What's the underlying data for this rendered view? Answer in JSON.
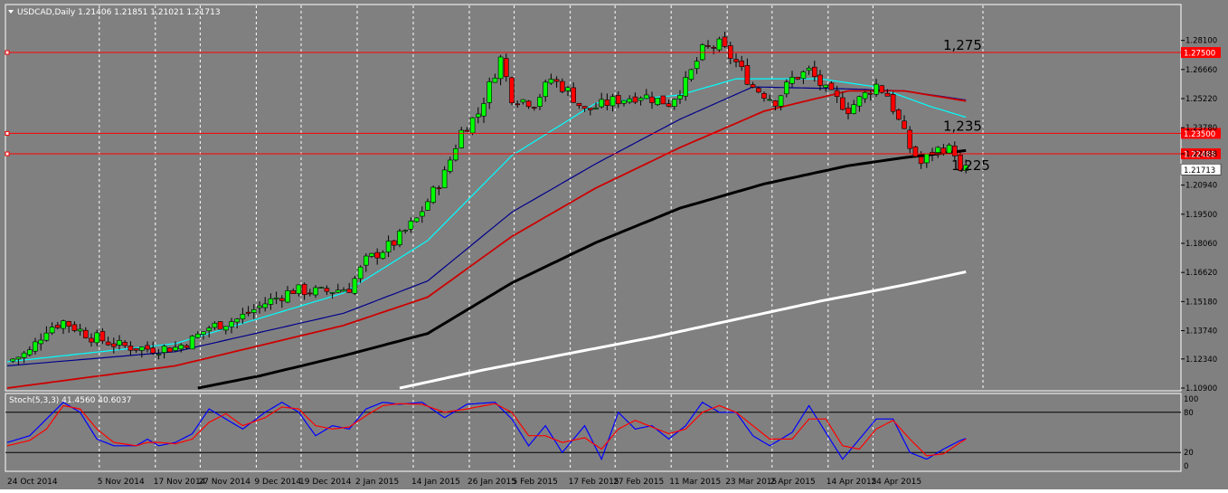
{
  "window": {
    "symbol_header": "USDCAD,Daily  1.21406 1.21851 1.21021 1.21713",
    "menu_icon": "dropdown-triangle-icon"
  },
  "colors": {
    "background": "#808080",
    "frame": "#ffffff",
    "grid": "#ffffff",
    "bull_candle": "#00ff00",
    "bear_candle": "#ff0000",
    "candle_wick": "#000000",
    "ma_fast": "#00ffff",
    "ma_mid": "#00008b",
    "ma_slow": "#cc0000",
    "ma_100": "#000000",
    "ma_200": "#ffffff",
    "hline": "#ff0000",
    "price_tag_red": "#ff0000",
    "price_tag_current": "#ffffff",
    "stoch_main": "#0000ff",
    "stoch_signal": "#ff0000"
  },
  "chart_data": [
    {
      "type": "candlestick",
      "title": "USDCAD,Daily",
      "header_values": {
        "open": 1.21406,
        "high": 1.21851,
        "low": 1.21021,
        "close": 1.21713
      },
      "ylim": [
        1.109,
        1.288
      ],
      "grid": "vertical dashed at date ticks",
      "y_ticks": [
        "1.28100",
        "1.26660",
        "1.25220",
        "1.23780",
        "1.22488",
        "1.20940",
        "1.19500",
        "1.18060",
        "1.16620",
        "1.15180",
        "1.13740",
        "1.12340",
        "1.10900"
      ],
      "x_ticks": [
        "24 Oct 2014",
        "5 Nov 2014",
        "17 Nov 2014",
        "27 Nov 2014",
        "9 Dec 2014",
        "19 Dec 2014",
        "2 Jan 2015",
        "14 Jan 2015",
        "26 Jan 2015",
        "5 Feb 2015",
        "17 Feb 2015",
        "27 Feb 2015",
        "11 Mar 2015",
        "23 Mar 2015",
        "2 Apr 2015",
        "14 Apr 2015",
        "24 Apr 2015"
      ],
      "horizontal_lines": [
        {
          "price": 1.275,
          "tag": "1.27500",
          "annotation": "1,275"
        },
        {
          "price": 1.235,
          "tag": "1.23500",
          "annotation": "1,235"
        },
        {
          "price": 1.22488,
          "tag": "1.22488",
          "annotation": "1,225"
        }
      ],
      "current_price_tag": "1.21713",
      "close_path": [
        [
          0,
          1.1222
        ],
        [
          4,
          1.127
        ],
        [
          7,
          1.1385
        ],
        [
          10,
          1.142
        ],
        [
          15,
          1.1345
        ],
        [
          20,
          1.13
        ],
        [
          25,
          1.1285
        ],
        [
          30,
          1.129
        ],
        [
          33,
          1.133
        ],
        [
          36,
          1.139
        ],
        [
          41,
          1.143
        ],
        [
          46,
          1.151
        ],
        [
          51,
          1.1575
        ],
        [
          56,
          1.1565
        ],
        [
          61,
          1.1585
        ],
        [
          64,
          1.172
        ],
        [
          69,
          1.181
        ],
        [
          73,
          1.1925
        ],
        [
          78,
          1.215
        ],
        [
          81,
          1.236
        ],
        [
          84,
          1.245
        ],
        [
          88,
          1.272
        ],
        [
          90,
          1.253
        ],
        [
          94,
          1.25
        ],
        [
          97,
          1.262
        ],
        [
          100,
          1.256
        ],
        [
          103,
          1.246
        ],
        [
          108,
          1.251
        ],
        [
          113,
          1.254
        ],
        [
          118,
          1.25
        ],
        [
          121,
          1.26
        ],
        [
          124,
          1.276
        ],
        [
          127,
          1.279
        ],
        [
          130,
          1.27
        ],
        [
          133,
          1.258
        ],
        [
          137,
          1.251
        ],
        [
          140,
          1.262
        ],
        [
          143,
          1.266
        ],
        [
          146,
          1.256
        ],
        [
          150,
          1.247
        ],
        [
          155,
          1.259
        ],
        [
          157,
          1.254
        ],
        [
          159,
          1.241
        ],
        [
          161,
          1.228
        ],
        [
          163,
          1.22
        ],
        [
          165,
          1.226
        ],
        [
          167,
          1.228
        ],
        [
          169,
          1.226
        ],
        [
          170,
          1.215
        ],
        [
          171,
          1.2171
        ]
      ],
      "moving_averages": [
        {
          "label": "MA fast (cyan)",
          "points": [
            [
              0,
              1.122
            ],
            [
              30,
              1.131
            ],
            [
              60,
              1.156
            ],
            [
              75,
              1.182
            ],
            [
              90,
              1.224
            ],
            [
              105,
              1.25
            ],
            [
              120,
              1.254
            ],
            [
              130,
              1.262
            ],
            [
              145,
              1.262
            ],
            [
              155,
              1.258
            ],
            [
              165,
              1.248
            ],
            [
              171,
              1.243
            ]
          ]
        },
        {
          "label": "MA mid (navy)",
          "points": [
            [
              0,
              1.12
            ],
            [
              30,
              1.127
            ],
            [
              60,
              1.146
            ],
            [
              75,
              1.162
            ],
            [
              90,
              1.196
            ],
            [
              105,
              1.22
            ],
            [
              120,
              1.242
            ],
            [
              133,
              1.258
            ],
            [
              150,
              1.257
            ],
            [
              160,
              1.256
            ],
            [
              171,
              1.2515
            ]
          ]
        },
        {
          "label": "MA slow (red)",
          "points": [
            [
              0,
              1.109
            ],
            [
              30,
              1.12
            ],
            [
              60,
              1.14
            ],
            [
              75,
              1.154
            ],
            [
              90,
              1.184
            ],
            [
              105,
              1.208
            ],
            [
              120,
              1.228
            ],
            [
              135,
              1.246
            ],
            [
              150,
              1.256
            ],
            [
              160,
              1.256
            ],
            [
              171,
              1.251
            ]
          ]
        },
        {
          "label": "MA 100 (black)",
          "points": [
            [
              34,
              1.109
            ],
            [
              45,
              1.115
            ],
            [
              60,
              1.125
            ],
            [
              75,
              1.136
            ],
            [
              90,
              1.161
            ],
            [
              105,
              1.181
            ],
            [
              120,
              1.198
            ],
            [
              135,
              1.21
            ],
            [
              150,
              1.219
            ],
            [
              160,
              1.223
            ],
            [
              171,
              1.2265
            ]
          ]
        },
        {
          "label": "MA 200 (white)",
          "points": [
            [
              70,
              1.109
            ],
            [
              85,
              1.118
            ],
            [
              100,
              1.126
            ],
            [
              115,
              1.134
            ],
            [
              130,
              1.143
            ],
            [
              145,
              1.152
            ],
            [
              160,
              1.16
            ],
            [
              171,
              1.1665
            ]
          ]
        }
      ]
    },
    {
      "type": "line",
      "title": "Stoch(5,3,3) 41.4560 40.6037",
      "ylim": [
        0,
        100
      ],
      "levels": [
        {
          "value": 80,
          "tag": "80"
        },
        {
          "value": 20,
          "tag": "20"
        }
      ],
      "y_ticks": [
        "100",
        "0"
      ],
      "series": [
        {
          "color": "blue",
          "points": [
            [
              0,
              35
            ],
            [
              4,
              45
            ],
            [
              7,
              70
            ],
            [
              10,
              95
            ],
            [
              13,
              80
            ],
            [
              16,
              40
            ],
            [
              19,
              30
            ],
            [
              23,
              30
            ],
            [
              25,
              40
            ],
            [
              27,
              30
            ],
            [
              30,
              35
            ],
            [
              33,
              48
            ],
            [
              36,
              85
            ],
            [
              39,
              70
            ],
            [
              42,
              55
            ],
            [
              46,
              80
            ],
            [
              49,
              95
            ],
            [
              52,
              80
            ],
            [
              55,
              45
            ],
            [
              58,
              60
            ],
            [
              61,
              55
            ],
            [
              64,
              85
            ],
            [
              67,
              95
            ],
            [
              70,
              92
            ],
            [
              74,
              95
            ],
            [
              78,
              72
            ],
            [
              82,
              92
            ],
            [
              87,
              95
            ],
            [
              90,
              70
            ],
            [
              93,
              30
            ],
            [
              96,
              60
            ],
            [
              99,
              20
            ],
            [
              103,
              60
            ],
            [
              106,
              10
            ],
            [
              109,
              80
            ],
            [
              112,
              55
            ],
            [
              115,
              60
            ],
            [
              118,
              40
            ],
            [
              121,
              60
            ],
            [
              124,
              95
            ],
            [
              127,
              80
            ],
            [
              130,
              80
            ],
            [
              133,
              45
            ],
            [
              136,
              30
            ],
            [
              140,
              50
            ],
            [
              143,
              90
            ],
            [
              146,
              50
            ],
            [
              149,
              10
            ],
            [
              152,
              40
            ],
            [
              155,
              70
            ],
            [
              158,
              70
            ],
            [
              161,
              20
            ],
            [
              164,
              10
            ],
            [
              167,
              25
            ],
            [
              170,
              38
            ],
            [
              171,
              41
            ]
          ]
        },
        {
          "color": "red",
          "points": [
            [
              0,
              30
            ],
            [
              4,
              38
            ],
            [
              7,
              55
            ],
            [
              10,
              90
            ],
            [
              13,
              85
            ],
            [
              16,
              55
            ],
            [
              19,
              35
            ],
            [
              23,
              30
            ],
            [
              25,
              35
            ],
            [
              27,
              35
            ],
            [
              30,
              33
            ],
            [
              33,
              40
            ],
            [
              36,
              65
            ],
            [
              39,
              78
            ],
            [
              42,
              60
            ],
            [
              46,
              72
            ],
            [
              49,
              88
            ],
            [
              52,
              85
            ],
            [
              55,
              60
            ],
            [
              58,
              55
            ],
            [
              61,
              58
            ],
            [
              64,
              75
            ],
            [
              67,
              90
            ],
            [
              70,
              93
            ],
            [
              74,
              92
            ],
            [
              78,
              80
            ],
            [
              82,
              85
            ],
            [
              87,
              93
            ],
            [
              90,
              80
            ],
            [
              93,
              45
            ],
            [
              96,
              45
            ],
            [
              99,
              35
            ],
            [
              103,
              42
            ],
            [
              106,
              25
            ],
            [
              109,
              55
            ],
            [
              112,
              68
            ],
            [
              115,
              58
            ],
            [
              118,
              48
            ],
            [
              121,
              55
            ],
            [
              124,
              80
            ],
            [
              127,
              90
            ],
            [
              130,
              80
            ],
            [
              133,
              60
            ],
            [
              136,
              40
            ],
            [
              140,
              40
            ],
            [
              143,
              70
            ],
            [
              146,
              70
            ],
            [
              149,
              30
            ],
            [
              152,
              25
            ],
            [
              155,
              55
            ],
            [
              158,
              68
            ],
            [
              161,
              40
            ],
            [
              164,
              15
            ],
            [
              167,
              18
            ],
            [
              170,
              35
            ],
            [
              171,
              40
            ]
          ]
        }
      ]
    }
  ]
}
